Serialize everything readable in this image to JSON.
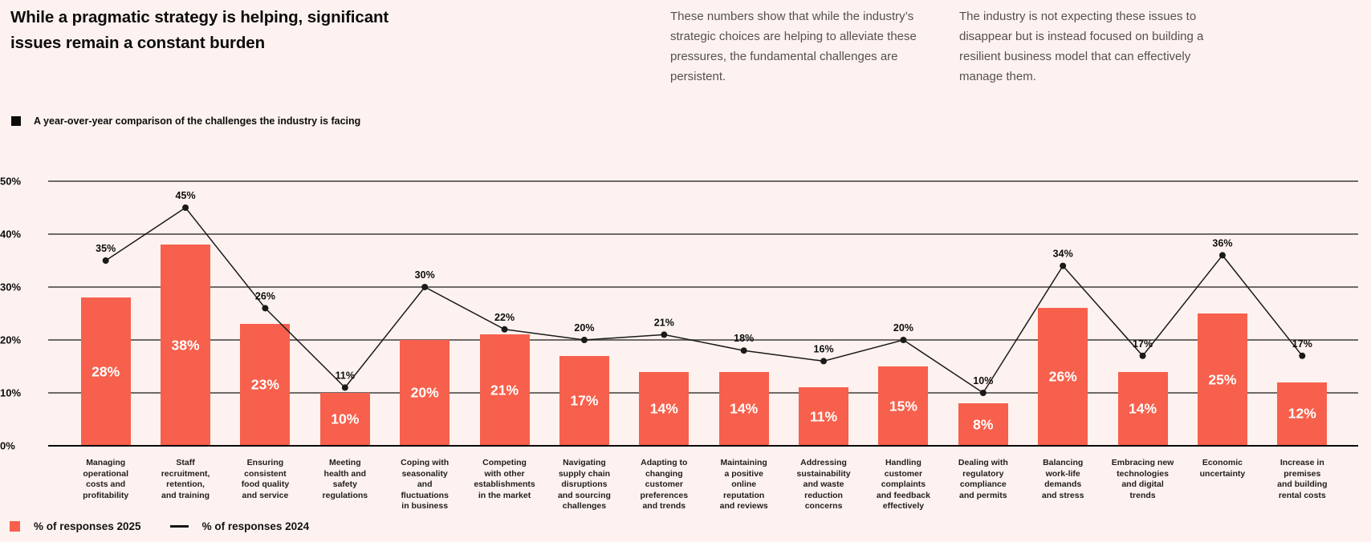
{
  "header": {
    "title": "While a pragmatic strategy is helping, significant issues remain a constant burden",
    "caption": "A year-over-year comparison of the challenges the industry is facing"
  },
  "paragraphs": [
    "These numbers show that while the industry’s strategic choices are helping to alleviate these pressures, the fundamental challenges are persistent.",
    "The industry is not expecting these issues to disappear but is instead focused on building a resilient business model that can effectively manage them."
  ],
  "legend": [
    {
      "label": "% of responses 2025",
      "swatch": "square",
      "color": "#f7604c"
    },
    {
      "label": "% of responses 2024",
      "swatch": "line",
      "color": "#141414"
    }
  ],
  "colors": {
    "background": "#fdf2ef",
    "bar": "#f7604c",
    "line": "#1a1a1a",
    "grid": "#6f6968",
    "axis": "#0a0a0a"
  },
  "chart_data": {
    "type": "bar",
    "subtype": "bar-with-line-overlay",
    "title": "A year-over-year comparison of the challenges the industry is facing",
    "xlabel": "",
    "ylabel": "",
    "ylim": [
      0,
      50
    ],
    "y_ticks": [
      50,
      40,
      30,
      20,
      10,
      0
    ],
    "y_tick_suffix": "%",
    "grid": true,
    "legend_position": "bottom-left",
    "categories": [
      "Managing\noperational\ncosts and\nprofitability",
      "Staff\nrecruitment,\nretention,\nand training",
      "Ensuring\nconsistent\nfood quality\nand service",
      "Meeting\nhealth and\nsafety\nregulations",
      "Coping with\nseasonality\nand\nfluctuations\nin business",
      "Competing\nwith other\nestablishments\nin the market",
      "Navigating\nsupply chain\ndisruptions\nand sourcing\nchallenges",
      "Adapting to\nchanging\ncustomer\npreferences\nand trends",
      "Maintaining\na positive\nonline\nreputation\nand reviews",
      "Addressing\nsustainability\nand waste\nreduction\nconcerns",
      "Handling\ncustomer\ncomplaints\nand feedback\neffectively",
      "Dealing with\nregulatory\ncompliance\nand permits",
      "Balancing\nwork-life\ndemands\nand stress",
      "Embracing new\ntechnologies\nand digital\ntrends",
      "Economic\nuncertainty",
      "Increase in\npremises\nand building\nrental costs"
    ],
    "series": [
      {
        "name": "% of responses 2025",
        "type": "bar",
        "values": [
          28,
          38,
          23,
          10,
          20,
          21,
          17,
          14,
          14,
          11,
          15,
          8,
          26,
          14,
          25,
          12
        ]
      },
      {
        "name": "% of responses 2024",
        "type": "line",
        "values": [
          35,
          45,
          26,
          11,
          30,
          22,
          20,
          21,
          18,
          16,
          20,
          10,
          34,
          17,
          36,
          17
        ]
      }
    ],
    "value_label_suffix": "%"
  }
}
